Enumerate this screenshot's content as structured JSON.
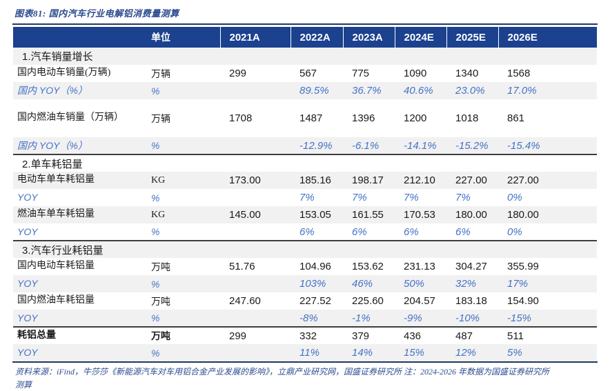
{
  "title": "图表81: 国内汽车行业电解铝消费量测算",
  "colors": {
    "header_bg": "#1B418F",
    "title_text": "#2B4B8F",
    "yoy_text": "#4472C4",
    "row_shade": "#F1F1F2",
    "rule": "#1F3864",
    "section_divider": "#3D3D3D"
  },
  "chart_data": {
    "type": "table",
    "title": "图表81: 国内汽车行业电解铝消费量测算",
    "unit_header": "单位",
    "year_columns": [
      "2021A",
      "2022A",
      "2023A",
      "2024E",
      "2025E",
      "2026E"
    ],
    "rows": [
      {
        "type": "section",
        "label": "1.汽车销量增长",
        "shaded": true
      },
      {
        "type": "data",
        "label": "国内电动车销量(万辆)",
        "unit": "万辆",
        "values": [
          "299",
          "567",
          "775",
          "1090",
          "1340",
          "1568"
        ],
        "shaded": false
      },
      {
        "type": "yoy",
        "label": "国内 YOY（%）",
        "unit": "%",
        "values": [
          "",
          "89.5%",
          "36.7%",
          "40.6%",
          "23.0%",
          "17.0%"
        ],
        "shaded": true
      },
      {
        "type": "data",
        "label": "国内燃油车销量（万辆）",
        "unit": "万辆",
        "values": [
          "1708",
          "1487",
          "1396",
          "1200",
          "1018",
          "861"
        ],
        "shaded": false,
        "two_line": true
      },
      {
        "type": "yoy",
        "label": "国内 YOY（%）",
        "unit": "%",
        "values": [
          "",
          "-12.9%",
          "-6.1%",
          "-14.1%",
          "-15.2%",
          "-15.4%"
        ],
        "shaded": true,
        "divider_after": true
      },
      {
        "type": "section",
        "label": "2.单车耗铝量",
        "shaded": false
      },
      {
        "type": "data",
        "label": "电动车单车耗铝量",
        "unit": "KG",
        "values": [
          "173.00",
          "185.16",
          "198.17",
          "212.10",
          "227.00",
          "227.00"
        ],
        "shaded": true
      },
      {
        "type": "yoy",
        "label": "YOY",
        "unit": "%",
        "values": [
          "",
          "7%",
          "7%",
          "7%",
          "7%",
          "0%"
        ],
        "shaded": false
      },
      {
        "type": "data",
        "label": "燃油车单车耗铝量",
        "unit": "KG",
        "values": [
          "145.00",
          "153.05",
          "161.55",
          "170.53",
          "180.00",
          "180.00"
        ],
        "shaded": true
      },
      {
        "type": "yoy",
        "label": "YOY",
        "unit": "%",
        "values": [
          "",
          "6%",
          "6%",
          "6%",
          "6%",
          "0%"
        ],
        "shaded": false,
        "divider_after": true
      },
      {
        "type": "section",
        "label": "3.汽车行业耗铝量",
        "shaded": true
      },
      {
        "type": "data",
        "label": "国内电动车耗铝量",
        "unit": "万吨",
        "values": [
          "51.76",
          "104.96",
          "153.62",
          "231.13",
          "304.27",
          "355.99"
        ],
        "shaded": false
      },
      {
        "type": "yoy",
        "label": "YOY",
        "unit": "%",
        "values": [
          "",
          "103%",
          "46%",
          "50%",
          "32%",
          "17%"
        ],
        "shaded": true
      },
      {
        "type": "data",
        "label": "国内燃油车耗铝量",
        "unit": "万吨",
        "values": [
          "247.60",
          "227.52",
          "225.60",
          "204.57",
          "183.18",
          "154.90"
        ],
        "shaded": false
      },
      {
        "type": "yoy",
        "label": "YOY",
        "unit": "%",
        "values": [
          "",
          "-8%",
          "-1%",
          "-9%",
          "-10%",
          "-15%"
        ],
        "shaded": true,
        "divider_after": true
      },
      {
        "type": "total",
        "label": "耗铝总量",
        "unit": "万吨",
        "values": [
          "299",
          "332",
          "379",
          "436",
          "487",
          "511"
        ],
        "shaded": false
      },
      {
        "type": "yoy",
        "label": "YOY",
        "unit": "%",
        "values": [
          "",
          "11%",
          "14%",
          "15%",
          "12%",
          "5%"
        ],
        "shaded": true
      }
    ]
  },
  "footer": {
    "source_line": "资料来源：iFind，牛莎莎《新能源汽车对车用铝合金产业发展的影响》，立鼎产业研究网，国盛证券研究所 注：2024-2026 年数据为国盛证券研究所",
    "source_line2": "测算"
  }
}
